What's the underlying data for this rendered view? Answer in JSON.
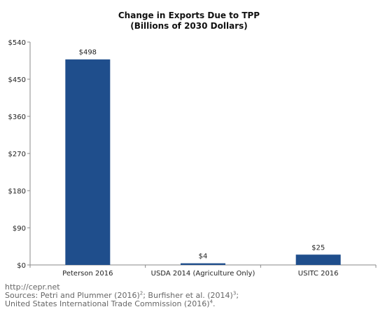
{
  "chart_data": {
    "type": "bar",
    "title": "Change in Exports Due to TPP",
    "subtitle": "(Billions of 2030 Dollars)",
    "categories": [
      "Peterson 2016",
      "USDA 2014 (Agriculture Only)",
      "USITC 2016"
    ],
    "values": [
      498,
      4,
      25
    ],
    "data_labels": [
      "$498",
      "$4",
      "$25"
    ],
    "ylim": [
      0,
      540
    ],
    "yticks": [
      0,
      90,
      180,
      270,
      360,
      450,
      540
    ],
    "ytick_labels": [
      "$0",
      "$90",
      "$180",
      "$270",
      "$360",
      "$450",
      "$540"
    ],
    "bar_color": "#1f4e8c",
    "grid": false,
    "legend": "none"
  },
  "footer": {
    "site": "http://cepr.net",
    "sources_prefix": "Sources: Petri and Plummer (2016)",
    "sources_sup1": "2",
    "sources_mid": "; Burfisher et al. (2014)",
    "sources_sup2": "3",
    "sources_end": ";",
    "usitc_text": "United States International Trade Commission (2016)",
    "usitc_sup": "4",
    "usitc_end": "."
  }
}
